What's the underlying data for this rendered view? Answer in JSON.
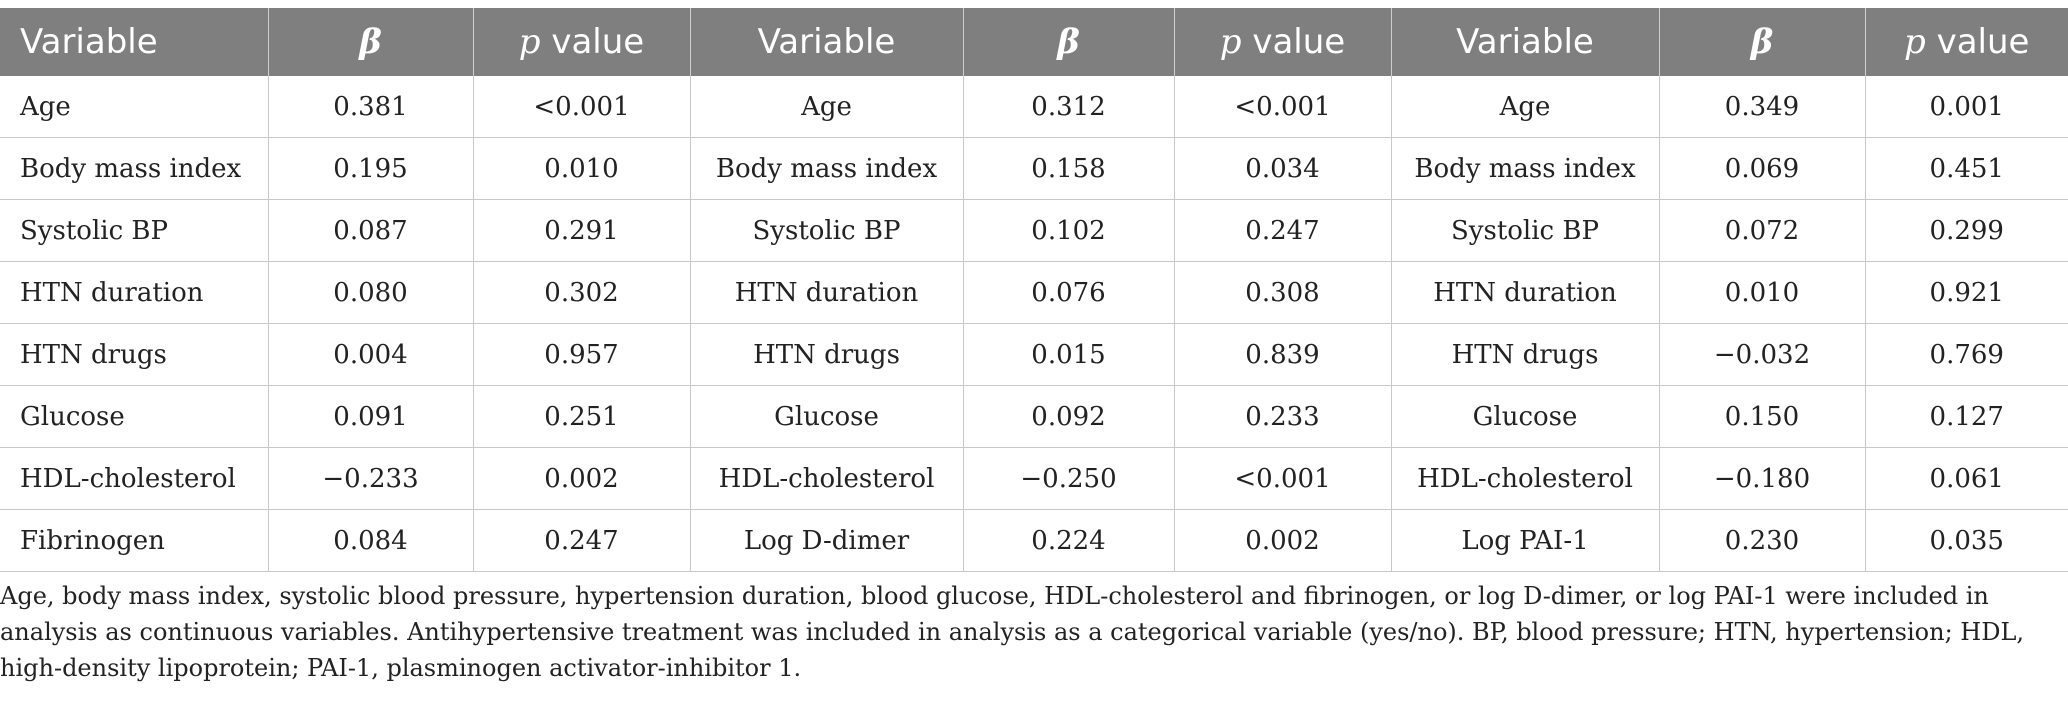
{
  "table": {
    "headers": [
      {
        "text": "Variable"
      },
      {
        "text": "β"
      },
      {
        "italic": "p",
        "text": " value"
      },
      {
        "text": "Variable"
      },
      {
        "text": "β"
      },
      {
        "italic": "p",
        "text": " value"
      },
      {
        "text": "Variable"
      },
      {
        "text": "β"
      },
      {
        "italic": "p",
        "text": " value"
      }
    ],
    "rows": [
      [
        "Age",
        "0.381",
        "<0.001",
        "Age",
        "0.312",
        "<0.001",
        "Age",
        "0.349",
        "0.001"
      ],
      [
        "Body mass index",
        "0.195",
        "0.010",
        "Body mass index",
        "0.158",
        "0.034",
        "Body mass index",
        "0.069",
        "0.451"
      ],
      [
        "Systolic BP",
        "0.087",
        "0.291",
        "Systolic BP",
        "0.102",
        "0.247",
        "Systolic BP",
        "0.072",
        "0.299"
      ],
      [
        "HTN duration",
        "0.080",
        "0.302",
        "HTN duration",
        "0.076",
        "0.308",
        "HTN duration",
        "0.010",
        "0.921"
      ],
      [
        "HTN drugs",
        "0.004",
        "0.957",
        "HTN drugs",
        "0.015",
        "0.839",
        "HTN drugs",
        "−0.032",
        "0.769"
      ],
      [
        "Glucose",
        "0.091",
        "0.251",
        "Glucose",
        "0.092",
        "0.233",
        "Glucose",
        "0.150",
        "0.127"
      ],
      [
        "HDL-cholesterol",
        "−0.233",
        "0.002",
        "HDL-cholesterol",
        "−0.250",
        "<0.001",
        "HDL-cholesterol",
        "−0.180",
        "0.061"
      ],
      [
        "Fibrinogen",
        "0.084",
        "0.247",
        "Log D-dimer",
        "0.224",
        "0.002",
        "Log PAI-1",
        "0.230",
        "0.035"
      ]
    ]
  },
  "footnote": "Age, body mass index, systolic blood pressure, hypertension duration, blood glucose, HDL-cholesterol and fibrinogen, or log D-dimer, or log PAI-1 were included in analysis as continuous variables. Antihypertensive treatment was included in analysis as a categorical variable (yes/no). BP, blood pressure; HTN, hypertension; HDL, high-density lipoprotein; PAI-1, plasminogen activator-inhibitor 1."
}
